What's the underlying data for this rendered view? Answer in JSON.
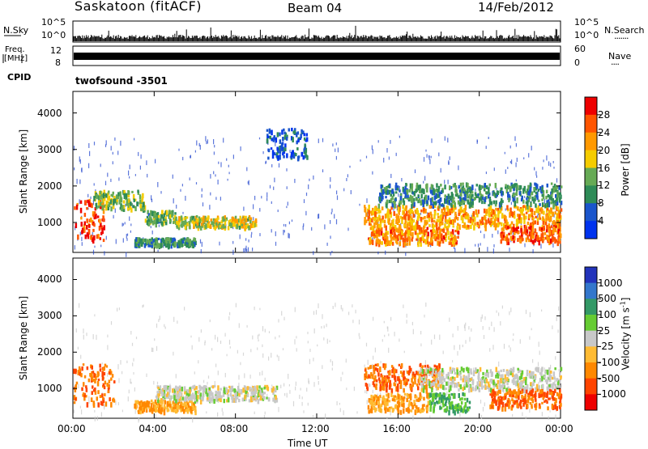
{
  "header": {
    "station": "Saskatoon (fitACF)",
    "beam": "Beam 04",
    "date": "14/Feb/2012"
  },
  "strip1": {
    "left_label": "N.Sky",
    "left_ticks": [
      "10^5",
      "10^0"
    ],
    "right_ticks": [
      "10^5",
      "10^0"
    ],
    "right_label": "N.Search",
    "right_marker": "·······"
  },
  "strip2": {
    "left_label_line1": "Freq.",
    "left_label_line2": "[MHz]",
    "left_ticks": [
      "12",
      "8"
    ],
    "right_ticks": [
      "60",
      "0"
    ],
    "right_label": "Nave",
    "right_marker": "····"
  },
  "cpid": {
    "label": "CPID",
    "program": "twofsound -3501"
  },
  "chart_data": [
    {
      "type": "heatmap",
      "name": "power",
      "ylabel": "Slant Range [km]",
      "yticks": [
        "4000",
        "3000",
        "2000",
        "1000"
      ],
      "ylim": [
        180,
        4590
      ],
      "xlim_hours": [
        0,
        24
      ],
      "colorbar": {
        "label": "Power [dB]",
        "ticks": [
          "28",
          "24",
          "20",
          "16",
          "12",
          "8",
          "4"
        ],
        "range": [
          0,
          30
        ],
        "colors": [
          "#0033ee",
          "#1a55cc",
          "#2e8b57",
          "#66aa55",
          "#f5cc00",
          "#ff9900",
          "#ff5500",
          "#ee0000"
        ]
      },
      "echo_bands": [
        {
          "t0": 0.0,
          "t1": 1.5,
          "r0": 550,
          "r1": 1650,
          "level": 26
        },
        {
          "t0": 1.0,
          "t1": 3.5,
          "r0": 1400,
          "r1": 1900,
          "level": 14
        },
        {
          "t0": 3.5,
          "t1": 5.0,
          "r0": 1000,
          "r1": 1350,
          "level": 12
        },
        {
          "t0": 5.0,
          "t1": 9.0,
          "r0": 900,
          "r1": 1200,
          "level": 16
        },
        {
          "t0": 3.0,
          "t1": 6.0,
          "r0": 400,
          "r1": 600,
          "level": 10
        },
        {
          "t0": 9.5,
          "t1": 11.5,
          "r0": 2800,
          "r1": 3600,
          "level": 6
        },
        {
          "t0": 14.5,
          "t1": 19.0,
          "r0": 450,
          "r1": 900,
          "level": 22
        },
        {
          "t0": 14.3,
          "t1": 24.0,
          "r0": 900,
          "r1": 1500,
          "level": 20
        },
        {
          "t0": 15.0,
          "t1": 24.0,
          "r0": 1500,
          "r1": 2100,
          "level": 10
        },
        {
          "t0": 21.0,
          "t1": 24.0,
          "r0": 500,
          "r1": 950,
          "level": 25
        }
      ]
    },
    {
      "type": "heatmap",
      "name": "velocity",
      "ylabel": "Slant Range [km]",
      "yticks": [
        "4000",
        "3000",
        "2000",
        "1000"
      ],
      "ylim": [
        180,
        4590
      ],
      "xlim_hours": [
        0,
        24
      ],
      "xticks": [
        "00:00",
        "04:00",
        "08:00",
        "12:00",
        "16:00",
        "20:00",
        "00:00"
      ],
      "xlabel": "Time UT",
      "colorbar": {
        "label": "Velocity [m s",
        "label_sup": "-1",
        "label_end": "]",
        "ticks": [
          "1000",
          "500",
          "100",
          "25",
          "-25",
          "-100",
          "-500",
          "-1000"
        ],
        "colors": [
          "#2233bb",
          "#3377cc",
          "#339966",
          "#66cc33",
          "#c8c8c8",
          "#ffbb33",
          "#ff8800",
          "#ff4400",
          "#ee0000"
        ]
      },
      "echo_bands": [
        {
          "t0": 0.0,
          "t1": 2.0,
          "r0": 600,
          "r1": 1700,
          "level": -500
        },
        {
          "t0": 3.0,
          "t1": 6.0,
          "r0": 400,
          "r1": 700,
          "level": -100
        },
        {
          "t0": 4.0,
          "t1": 10.0,
          "r0": 700,
          "r1": 1100,
          "level": 0
        },
        {
          "t0": 14.3,
          "t1": 18.0,
          "r0": 1000,
          "r1": 1700,
          "level": -500
        },
        {
          "t0": 14.5,
          "t1": 17.5,
          "r0": 400,
          "r1": 900,
          "level": -100
        },
        {
          "t0": 17.5,
          "t1": 19.5,
          "r0": 400,
          "r1": 900,
          "level": 100
        },
        {
          "t0": 17.0,
          "t1": 24.0,
          "r0": 1000,
          "r1": 1600,
          "level": 0
        },
        {
          "t0": 20.5,
          "t1": 24.0,
          "r0": 500,
          "r1": 1000,
          "level": -500
        }
      ]
    }
  ]
}
